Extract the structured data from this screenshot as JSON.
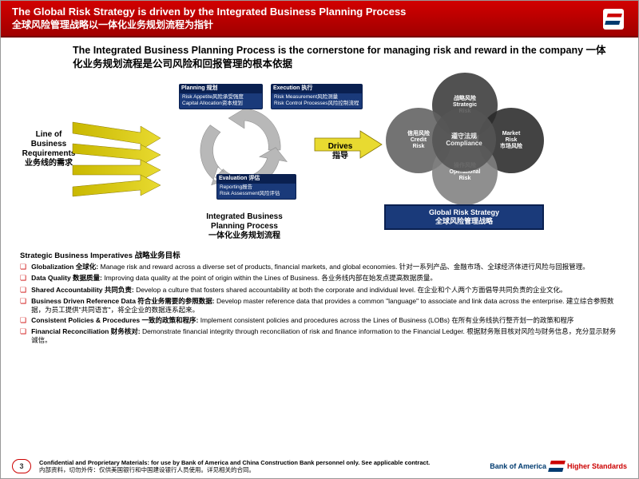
{
  "header": {
    "en": "The Global Risk Strategy is driven by the Integrated Business Planning Process",
    "cn": "全球风险管理战略以一体化业务规划流程为指针"
  },
  "subtitle": "The Integrated Business Planning Process is the cornerstone for managing risk and reward in the company 一体化业务规划流程是公司风险和回报管理的根本依据",
  "lob": {
    "l1": "Line of",
    "l2": "Business",
    "l3": "Requirements",
    "l4": "业务线的需求"
  },
  "boxes": {
    "planning": {
      "title": "Planning 规划",
      "r1": "Risk Appetite风险承受强度",
      "r2": "Capital Allocation资本规划"
    },
    "execution": {
      "title": "Execution 执行",
      "r1": "Risk Measurement风险测量",
      "r2": "Risk Control Processes风险控制流程"
    },
    "evaluation": {
      "title": "Evaluation 评估",
      "r1": "Reporting报告",
      "r2": "Risk Assessment风险评估"
    }
  },
  "ibpp": {
    "l1": "Integrated Business",
    "l2": "Planning Process",
    "l3": "一体化业务规划流程"
  },
  "drives": {
    "l1": "Drives",
    "l2": "指导"
  },
  "venn": {
    "strategic": {
      "cn": "战略风险",
      "en": "Strategic",
      "en2": "Risk",
      "color": "#3a3a3a"
    },
    "credit": {
      "cn": "信用风险",
      "en": "Credit",
      "en2": "Risk",
      "color": "#606060"
    },
    "market": {
      "cn": "",
      "en": "Market",
      "en2": "Risk",
      "cn2": "市场风险",
      "color": "#2a2a2a"
    },
    "operational": {
      "cn": "操作风险",
      "en": "Operational",
      "en2": "Risk",
      "color": "#808080"
    },
    "compliance": {
      "cn": "遵守法规",
      "en": "Compliance",
      "color": "#555555"
    }
  },
  "grs": {
    "l1": "Global Risk Strategy",
    "l2": "全球风险管理战略"
  },
  "imperatives": {
    "title": "Strategic Business Imperatives 战略业务目标",
    "items": [
      {
        "b": "Globalization 全球化:",
        "t": "  Manage risk and reward across a diverse set of products, financial markets, and global economies. 针对一系列产品、金融市场、全球经济体进行风险与回报管理。"
      },
      {
        "b": "Data Quality 数据质量:",
        "t": "  Improving data quality at the point of origin within the Lines of Business. 各业务线内部在始发点提高数据质量。"
      },
      {
        "b": "Shared Accountability 共同负责:",
        "t": "  Develop a culture that fosters shared accountability at both the corporate and individual level. 在企业和个人两个方面倡导共同负责的企业文化。"
      },
      {
        "b": "Business Driven Reference Data 符合业务需要的参照数据:",
        "t": "  Develop master reference data that provides a common \"language\" to associate and link data across the enterprise. 建立综合参照数据，为员工提供\"共同语言\"，将全企业的数据连系起来。"
      },
      {
        "b": "Consistent Policies & Procedures 一致的政策和程序:",
        "t": "  Implement consistent policies and procedures across the Lines of Business (LOBs) 在所有业务线执行整齐划一的政策和程序"
      },
      {
        "b": "Financial Reconciliation 财务核对:",
        "t": " Demonstrate financial integrity through reconciliation of risk and finance information to the Financial Ledger. 根据财务账目核对风险与财务信息，充分显示财务诚信。"
      }
    ]
  },
  "footer": {
    "page": "3",
    "conf": "Confidential and Proprietary Materials:  for use by Bank of America and China Construction Bank personnel only.  See applicable contract.",
    "conf_cn": "内部资料，切勿外传：仅供美国银行和中国建设银行人员使用。详见相关的合同。",
    "logo1": "Bank of America",
    "logo2": "Higher Standards"
  }
}
